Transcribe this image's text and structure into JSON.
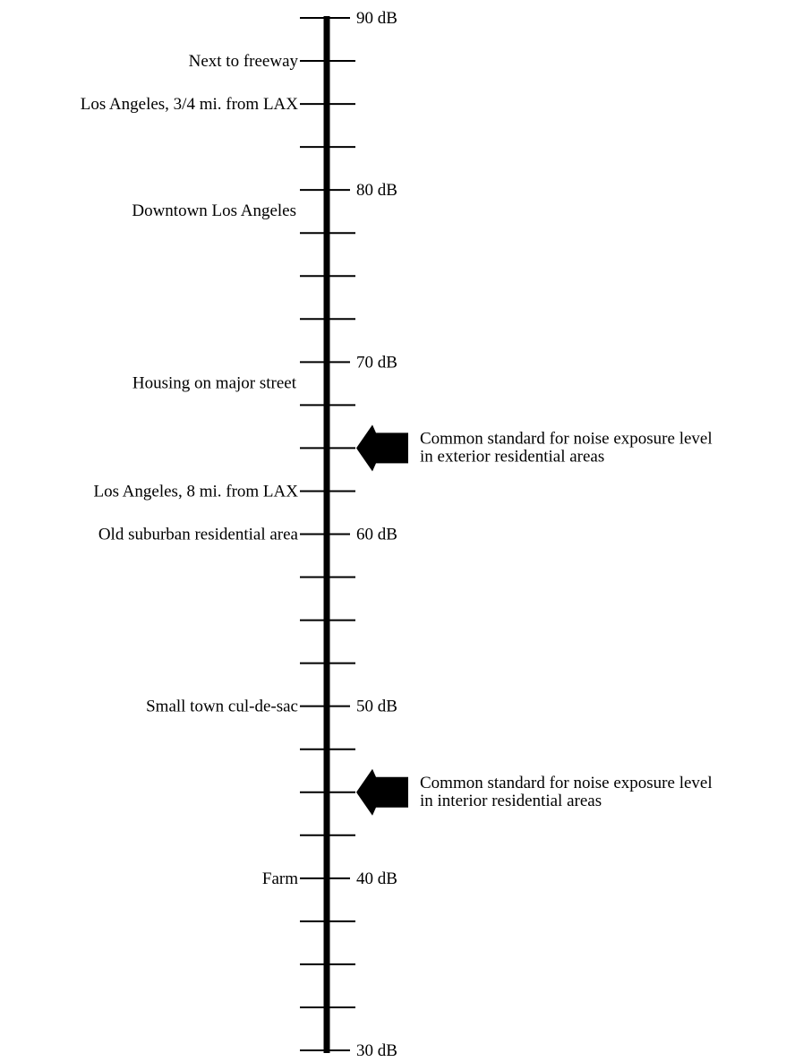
{
  "diagram": {
    "type": "noise-level-scale",
    "unit": "dB",
    "range": [
      30,
      90
    ],
    "minor_step": 2.5,
    "major_ticks": [
      {
        "value": 90,
        "label": "90 dB"
      },
      {
        "value": 80,
        "label": "80 dB"
      },
      {
        "value": 70,
        "label": "70 dB"
      },
      {
        "value": 60,
        "label": "60 dB"
      },
      {
        "value": 50,
        "label": "50 dB"
      },
      {
        "value": 40,
        "label": "40 dB"
      },
      {
        "value": 30,
        "label": "30 dB"
      }
    ],
    "locations": [
      {
        "value": 87.5,
        "label": "Next to freeway",
        "leader": true
      },
      {
        "value": 85,
        "label": "Los Angeles, 3/4 mi. from LAX",
        "leader": true
      },
      {
        "value": 78.8,
        "label": "Downtown Los Angeles",
        "leader": false
      },
      {
        "value": 68.8,
        "label": "Housing on major street",
        "leader": false
      },
      {
        "value": 62.5,
        "label": "Los Angeles, 8 mi. from LAX",
        "leader": true
      },
      {
        "value": 60,
        "label": "Old suburban residential area",
        "leader": true
      },
      {
        "value": 50,
        "label": "Small town cul-de-sac",
        "leader": true
      },
      {
        "value": 40,
        "label": "Farm",
        "leader": true
      }
    ],
    "standards": [
      {
        "value": 65,
        "lines": [
          "Common standard for noise exposure level",
          "in exterior residential areas"
        ]
      },
      {
        "value": 45,
        "lines": [
          "Common standard for noise exposure level",
          "in interior residential areas"
        ]
      }
    ]
  }
}
